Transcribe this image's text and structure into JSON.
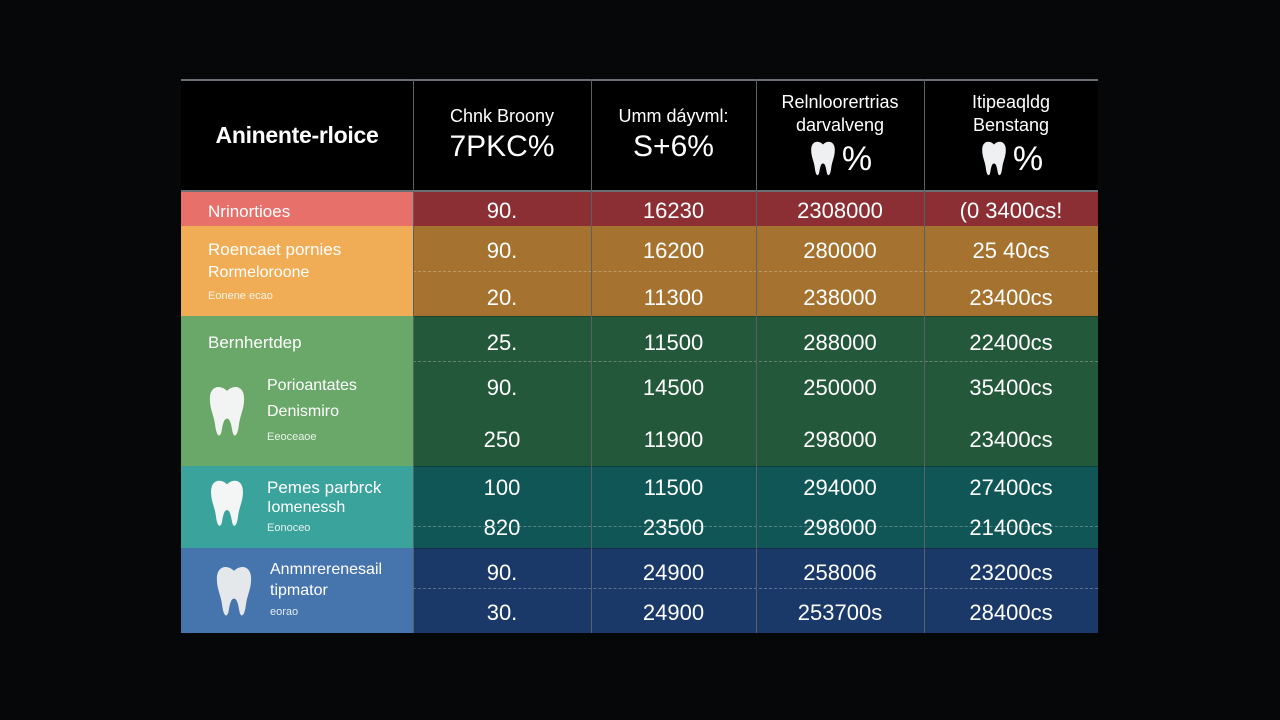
{
  "header": {
    "title": "Aninente-rloice",
    "columns": [
      {
        "line1": "Chnk Broony",
        "line2": "7PKC%"
      },
      {
        "line1": "Umm dáyvml:",
        "line2": "S+6%"
      },
      {
        "line1": "Relnloorertrias",
        "line2": "darvalveng",
        "pct": "%"
      },
      {
        "line1": "Itipeaqldg",
        "line2": "Benstang",
        "pct": "%"
      }
    ]
  },
  "colors": {
    "red_label": "#e8706b",
    "red_data": "#8c2f35",
    "orange_label": "#f0ad55",
    "orange_data": "#a5732f",
    "green_label": "#6aa86a",
    "green_data": "#24583a",
    "teal_label": "#3aa39c",
    "teal_data": "#105656",
    "blue_label": "#4675ad",
    "blue_data": "#1a3968"
  },
  "groups": [
    {
      "key": "red",
      "label": "Nrinortioes"
    },
    {
      "key": "orange",
      "label": "Roencaet pornies",
      "sub": "Rormeloroone",
      "tiny": "Eonene ecao"
    },
    {
      "key": "green",
      "label": "Bernhertdep",
      "sub": "Porioantates",
      "sub2": "Denismiro",
      "tiny": "Eeoceaoe",
      "icon": "tooth-icon"
    },
    {
      "key": "teal",
      "label": "Pemes parbrck",
      "sub": "Iomenessh",
      "tiny": "Eonoceo",
      "icon": "tooth-icon"
    },
    {
      "key": "blue",
      "label": "Anmnrerenesail",
      "sub": "tipmator",
      "tiny": "eorao",
      "icon": "tooth-icon"
    }
  ],
  "rows": [
    [
      "90.",
      "16230",
      "2308000",
      "(0 3400cs!"
    ],
    [
      "90.",
      "16200",
      "280000",
      "25 40cs"
    ],
    [
      "20.",
      "11300",
      "238000",
      "23400cs"
    ],
    [
      "25.",
      "11500",
      "288000",
      "22400cs"
    ],
    [
      "90.",
      "14500",
      "250000",
      "35400cs"
    ],
    [
      "250",
      "11900",
      "298000",
      "23400cs"
    ],
    [
      "100",
      "11500",
      "294000",
      "27400cs"
    ],
    [
      "820",
      "23500",
      "298000",
      "21400cs"
    ],
    [
      "90.",
      "24900",
      "258006",
      "23200cs"
    ],
    [
      "30.",
      "24900",
      "253700s",
      "28400cs"
    ]
  ]
}
